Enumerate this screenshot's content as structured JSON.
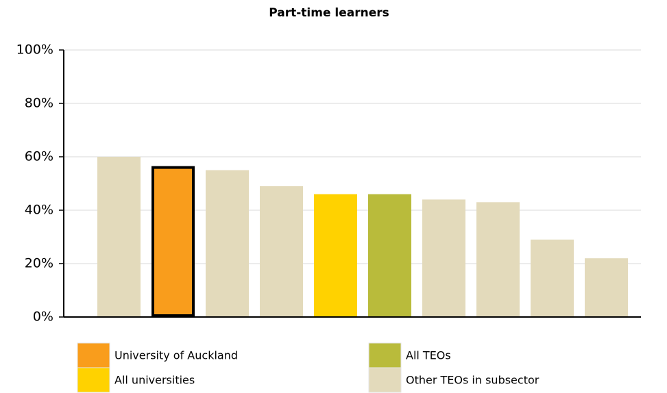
{
  "chart_data": {
    "type": "bar",
    "title": "Part-time learners",
    "categories": [
      null,
      null,
      null,
      null,
      null,
      null,
      null,
      null,
      null,
      null
    ],
    "values": [
      60,
      56,
      55,
      49,
      46,
      46,
      44,
      43,
      29,
      22
    ],
    "colors": [
      "#e3dabb",
      "#f99d1c",
      "#e3dabb",
      "#e3dabb",
      "#ffd200",
      "#b9bb3b",
      "#e3dabb",
      "#e3dabb",
      "#e3dabb",
      "#e3dabb"
    ],
    "edgecolors": [
      null,
      "#000000",
      null,
      null,
      null,
      null,
      null,
      null,
      null,
      null
    ],
    "ylim": [
      0,
      100
    ],
    "yticks": [
      {
        "value": 0,
        "label": "0%"
      },
      {
        "value": 20,
        "label": "20%"
      },
      {
        "value": 40,
        "label": "40%"
      },
      {
        "value": 60,
        "label": "60%"
      },
      {
        "value": 80,
        "label": "80%"
      },
      {
        "value": 100,
        "label": "100%"
      }
    ],
    "grid": true,
    "legend": [
      {
        "name": "University of Auckland",
        "color": "#f99d1c"
      },
      {
        "name": "All universities",
        "color": "#ffd200"
      },
      {
        "name": "All TEOs",
        "color": "#b9bb3b"
      },
      {
        "name": "Other TEOs in subsector",
        "color": "#e3dabb"
      }
    ]
  }
}
